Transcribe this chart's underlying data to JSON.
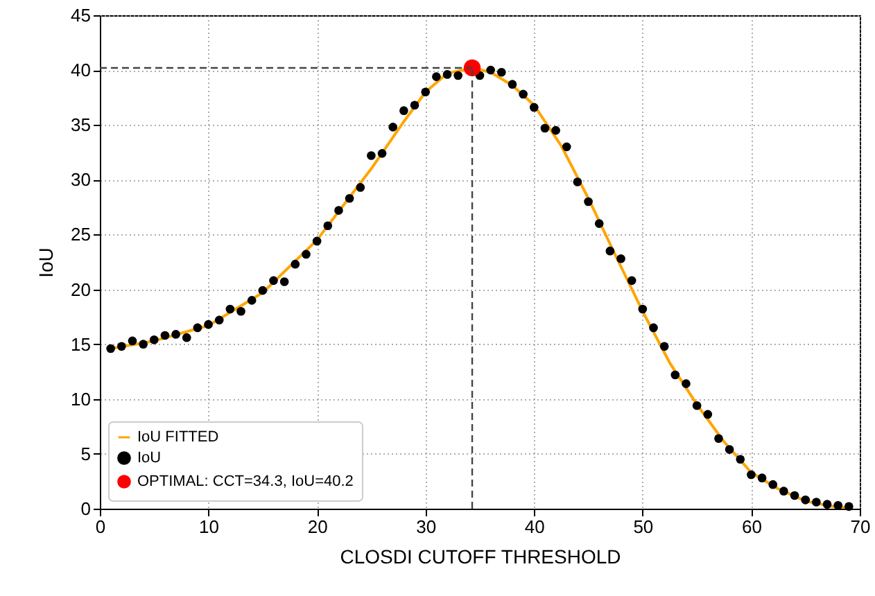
{
  "chart_data": {
    "type": "scatter",
    "xlabel": "CLOSDI CUTOFF THRESHOLD",
    "ylabel": "IoU",
    "xlim": [
      0,
      70
    ],
    "ylim": [
      0,
      45
    ],
    "xticks": [
      0,
      10,
      20,
      30,
      40,
      50,
      60,
      70
    ],
    "yticks": [
      0,
      5,
      10,
      15,
      20,
      25,
      30,
      35,
      40,
      45
    ],
    "grid": true,
    "legend": "bottom left",
    "series": [
      {
        "name": "IoU FITTED",
        "type": "line",
        "color": "#ffa500",
        "marker": "none",
        "line_style": "solid",
        "x": [
          1,
          5,
          10,
          15,
          20,
          25,
          28,
          30,
          32,
          34.3,
          36,
          38,
          40,
          42.5,
          45,
          47.5,
          50,
          52.5,
          55,
          57.5,
          60,
          62.5,
          65,
          67.5,
          69
        ],
        "values": [
          14.6,
          15.3,
          16.7,
          19.7,
          24.5,
          31,
          35.3,
          38,
          39.7,
          40.2,
          39.8,
          38.6,
          36.8,
          33.1,
          28.3,
          23.1,
          18,
          13.3,
          9.5,
          6.1,
          3.3,
          1.8,
          0.7,
          0.2,
          0.1
        ]
      },
      {
        "name": "IoU",
        "type": "scatter",
        "color": "#000000",
        "marker": "circle",
        "x": [
          1,
          2,
          3,
          4,
          5,
          6,
          7,
          8,
          9,
          10,
          11,
          12,
          13,
          14,
          15,
          16,
          17,
          18,
          19,
          20,
          21,
          22,
          23,
          24,
          25,
          26,
          27,
          28,
          29,
          30,
          31,
          32,
          33,
          35,
          36,
          37,
          38,
          39,
          40,
          41,
          42,
          43,
          44,
          45,
          46,
          47,
          48,
          49,
          50,
          51,
          52,
          53,
          54,
          55,
          56,
          57,
          58,
          59,
          60,
          61,
          62,
          63,
          64,
          65,
          66,
          67,
          68,
          69
        ],
        "values": [
          14.6,
          14.8,
          15.3,
          15.0,
          15.4,
          15.8,
          15.9,
          15.6,
          16.5,
          16.8,
          17.2,
          18.2,
          18.0,
          19.0,
          19.9,
          20.8,
          20.7,
          22.3,
          23.2,
          24.4,
          25.8,
          27.2,
          28.3,
          29.3,
          32.2,
          32.4,
          34.8,
          36.3,
          36.8,
          38.0,
          39.4,
          39.6,
          39.5,
          39.5,
          40.0,
          39.8,
          38.7,
          37.8,
          36.6,
          34.7,
          34.5,
          33.0,
          29.8,
          28.0,
          26.0,
          23.5,
          22.8,
          20.8,
          18.2,
          16.5,
          14.8,
          12.2,
          11.4,
          9.4,
          8.6,
          6.4,
          5.4,
          4.5,
          3.1,
          2.8,
          2.2,
          1.6,
          1.2,
          0.8,
          0.6,
          0.4,
          0.3,
          0.2
        ]
      },
      {
        "name": "OPTIMAL: CCT=34.3, IoU=40.2",
        "type": "scatter",
        "color": "#ff0000",
        "marker": "circle",
        "x": [
          34.3
        ],
        "values": [
          40.2
        ]
      }
    ],
    "ref_lines": [
      {
        "axis": "y",
        "value": 40.2,
        "color": "#444444",
        "line_style": "dashed"
      },
      {
        "axis": "x",
        "value": 34.3,
        "color": "#444444",
        "line_style": "dashed"
      }
    ]
  }
}
